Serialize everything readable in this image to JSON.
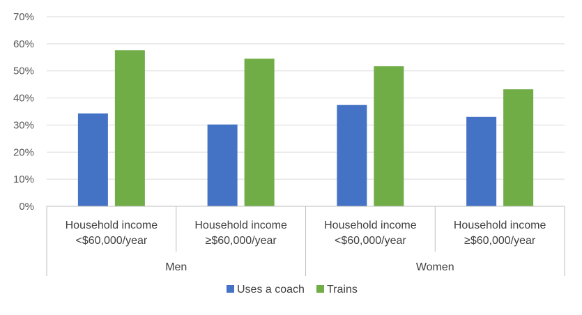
{
  "chart_data": {
    "type": "bar",
    "y_ticks": [
      "0%",
      "10%",
      "20%",
      "30%",
      "40%",
      "50%",
      "60%",
      "70%"
    ],
    "ylim": [
      0,
      70
    ],
    "grid": true,
    "legend_position": "bottom",
    "groups": [
      {
        "name": "Men",
        "categories": [
          {
            "line1": "Household income",
            "line2": "<$60,000/year"
          },
          {
            "line1": "Household income",
            "line2": "≥$60,000/year"
          }
        ]
      },
      {
        "name": "Women",
        "categories": [
          {
            "line1": "Household income",
            "line2": "<$60,000/year"
          },
          {
            "line1": "Household income",
            "line2": "≥$60,000/year"
          }
        ]
      }
    ],
    "series": [
      {
        "name": "Uses a coach",
        "color": "#4472C4",
        "values": [
          34.3,
          30.2,
          37.4,
          33.0
        ]
      },
      {
        "name": "Trains",
        "color": "#70AD47",
        "values": [
          57.6,
          54.5,
          51.7,
          43.2
        ]
      }
    ]
  }
}
